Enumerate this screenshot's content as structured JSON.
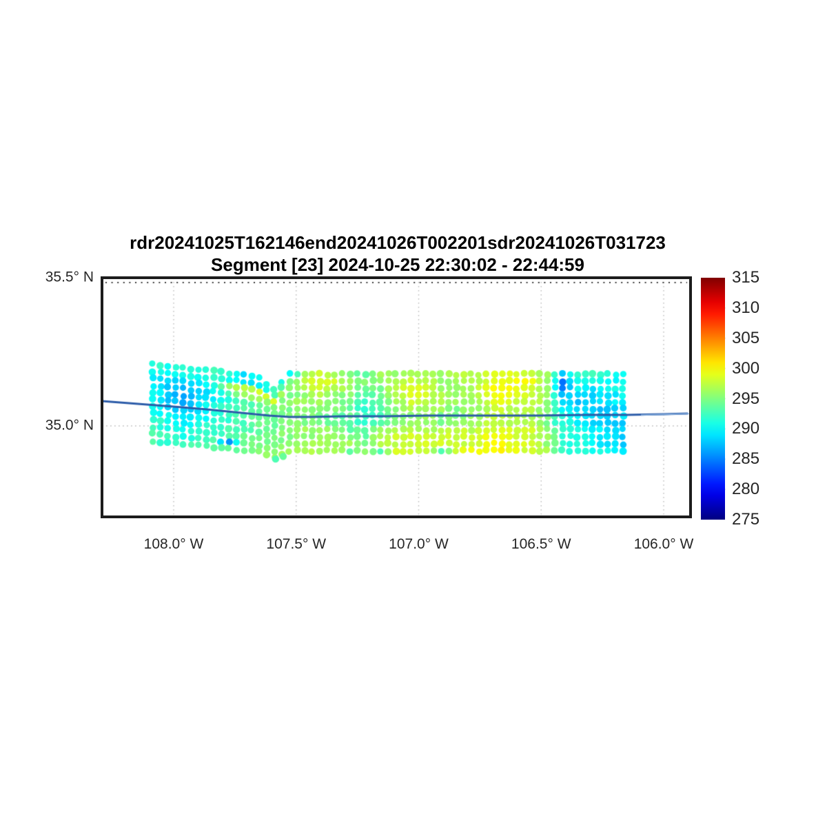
{
  "figure": {
    "title": "rdr20241025T162146end20241026T002201sdr20241026T031723",
    "subtitle": "Segment [23] 2024-10-25 22:30:02 - 22:44:59"
  },
  "axes": {
    "xlim": [
      -108.2925,
      -105.8903
    ],
    "ylim": [
      34.693,
      35.5
    ],
    "xticks": [
      {
        "value": -108.0,
        "label": "108.0° W"
      },
      {
        "value": -107.5,
        "label": "107.5° W"
      },
      {
        "value": -107.0,
        "label": "107.0° W"
      },
      {
        "value": -106.5,
        "label": "106.5° W"
      },
      {
        "value": -106.0,
        "label": "106.0° W"
      }
    ],
    "yticks": [
      {
        "value": 35.5,
        "label": "35.5° N"
      },
      {
        "value": 35.0,
        "label": "35.0° N"
      }
    ],
    "grid_style": "dotted",
    "grid_color": "#c0c0c0",
    "frame_color": "#1c1c1c"
  },
  "colorbar": {
    "colormap": "jet",
    "min": 275,
    "max": 315,
    "tick_labels": [
      "315",
      "310",
      "305",
      "300",
      "295",
      "290",
      "285",
      "280",
      "275"
    ],
    "tick_values": [
      315,
      310,
      305,
      300,
      295,
      290,
      285,
      280,
      275
    ]
  },
  "chart_data": {
    "type": "scatter",
    "swath": {
      "lon_start": -108.0844,
      "lon_step": 0.061885,
      "n_cols": 32,
      "n_rows": 12,
      "col_lat_top": [
        35.207,
        35.2014,
        35.1958,
        35.1902,
        35.1847,
        35.1791,
        35.1735,
        35.1605,
        35.1256,
        35.1744,
        35.1744,
        35.1744,
        35.1744,
        35.1744,
        35.1744,
        35.1744,
        35.1744,
        35.1744,
        35.1744,
        35.1744,
        35.1744,
        35.1744,
        35.1744,
        35.1744,
        35.1744,
        35.1744,
        35.1744,
        35.1744,
        35.1744,
        35.1744,
        35.1744,
        35.1744
      ],
      "col_lat_bottom": [
        34.9488,
        34.9436,
        34.9384,
        34.9331,
        34.9279,
        34.9227,
        34.9174,
        34.9122,
        34.893,
        34.9163,
        34.9163,
        34.9163,
        34.9163,
        34.9163,
        34.9163,
        34.9163,
        34.9163,
        34.9163,
        34.9163,
        34.9163,
        34.9163,
        34.9163,
        34.9163,
        34.9163,
        34.9163,
        34.9163,
        34.9163,
        34.9163,
        34.9163,
        34.9163,
        34.9163,
        34.9163
      ],
      "temps": [
        [
          292,
          291,
          292,
          291,
          293,
          291,
          289,
          290,
          292,
          290,
          296,
          298,
          297,
          295,
          294,
          296,
          296,
          297,
          296,
          296,
          297,
          297,
          298,
          299,
          299,
          298,
          296,
          288,
          292,
          293,
          292,
          290
        ],
        [
          291,
          290,
          291,
          290,
          292,
          291,
          289,
          289,
          293,
          294,
          297,
          299,
          298,
          296,
          295,
          296,
          297,
          298,
          297,
          296,
          296,
          297,
          298,
          299,
          300,
          299,
          296,
          285,
          291,
          291,
          290,
          290
        ],
        [
          290,
          289,
          288,
          289,
          291,
          296,
          297,
          298,
          298,
          295,
          297,
          299,
          297,
          296,
          294,
          295,
          298,
          299,
          298,
          296,
          296,
          297,
          299,
          300,
          299,
          298,
          296,
          285,
          290,
          289,
          290,
          291
        ],
        [
          290,
          288,
          287,
          288,
          290,
          293,
          296,
          297,
          295,
          295,
          296,
          297,
          296,
          295,
          293,
          294,
          297,
          299,
          298,
          297,
          296,
          297,
          299,
          300,
          299,
          298,
          296,
          287,
          289,
          288,
          289,
          290
        ],
        [
          291,
          288,
          287,
          288,
          290,
          291,
          293,
          294,
          295,
          296,
          296,
          296,
          295,
          294,
          292,
          294,
          296,
          298,
          297,
          297,
          296,
          296,
          298,
          299,
          298,
          298,
          296,
          289,
          288,
          288,
          289,
          290
        ],
        [
          291,
          288,
          287,
          289,
          291,
          292,
          293,
          294,
          294,
          295,
          295,
          295,
          295,
          294,
          291,
          293,
          295,
          297,
          296,
          296,
          295,
          296,
          297,
          298,
          297,
          297,
          295,
          290,
          289,
          288,
          288,
          289
        ],
        [
          290,
          289,
          288,
          289,
          291,
          292,
          293,
          294,
          294,
          295,
          295,
          295,
          294,
          294,
          292,
          293,
          295,
          296,
          296,
          295,
          295,
          296,
          297,
          298,
          297,
          297,
          295,
          291,
          290,
          289,
          288,
          289
        ],
        [
          291,
          290,
          289,
          290,
          291,
          292,
          293,
          294,
          294,
          295,
          295,
          295,
          294,
          293,
          292,
          294,
          295,
          296,
          296,
          295,
          296,
          296,
          298,
          298,
          297,
          297,
          294,
          291,
          290,
          288,
          288,
          288
        ],
        [
          292,
          291,
          290,
          291,
          292,
          293,
          293,
          294,
          295,
          295,
          296,
          296,
          295,
          294,
          293,
          296,
          297,
          297,
          297,
          297,
          298,
          297,
          298,
          299,
          298,
          298,
          295,
          292,
          291,
          290,
          289,
          288
        ],
        [
          292,
          291,
          291,
          292,
          292,
          293,
          294,
          294,
          295,
          295,
          296,
          296,
          296,
          295,
          294,
          297,
          298,
          298,
          298,
          298,
          298,
          298,
          299,
          299,
          298,
          298,
          296,
          292,
          291,
          290,
          289,
          288
        ],
        [
          293,
          292,
          291,
          292,
          293,
          286,
          294,
          295,
          295,
          296,
          296,
          297,
          296,
          296,
          295,
          297,
          297,
          298,
          298,
          298,
          298,
          298,
          299,
          300,
          299,
          298,
          296,
          292,
          291,
          290,
          289,
          288
        ],
        [
          293,
          292,
          292,
          293,
          293,
          294,
          294,
          295,
          296,
          296,
          297,
          297,
          297,
          294,
          296,
          293,
          298,
          298,
          298,
          293,
          298,
          299,
          299,
          300,
          299,
          298,
          297,
          292,
          292,
          291,
          290,
          289
        ]
      ]
    },
    "extra_points": [
      {
        "lon": -107.584,
        "lat": 34.888,
        "t": 293
      },
      {
        "lon": -107.553,
        "lat": 34.897,
        "t": 294
      }
    ],
    "track": {
      "color": "#2b5ba8",
      "points": [
        [
          -108.2925,
          35.0837
        ],
        [
          -108.1463,
          35.0744
        ],
        [
          -108.0,
          35.0651
        ],
        [
          -107.865,
          35.0558
        ],
        [
          -107.7243,
          35.0442
        ],
        [
          -107.6118,
          35.0349
        ],
        [
          -107.5274,
          35.0302
        ],
        [
          -107.443,
          35.0302
        ],
        [
          -107.3024,
          35.0326
        ],
        [
          -107.1336,
          35.0326
        ],
        [
          -106.9648,
          35.0349
        ],
        [
          -106.7398,
          35.0349
        ],
        [
          -106.5148,
          35.0349
        ],
        [
          -106.3179,
          35.0372
        ],
        [
          -106.1491,
          35.0372
        ],
        [
          -106.0,
          35.0395
        ],
        [
          -105.9015,
          35.0419
        ]
      ],
      "overlay_color": "#7aa3d6",
      "overlay_points": [
        [
          -106.093,
          35.0365
        ],
        [
          -105.897,
          35.041
        ]
      ]
    }
  }
}
